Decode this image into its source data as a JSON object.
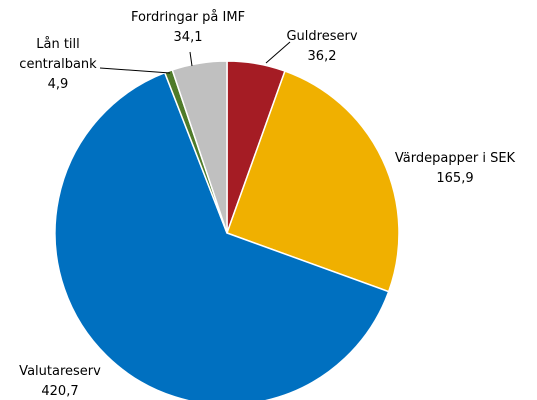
{
  "chart_data": {
    "type": "pie",
    "categories": [
      "Guldreserv",
      "Värdepapper i SEK",
      "Valutareserv",
      "Lån till centralbank",
      "Fordringar på IMF"
    ],
    "values": [
      36.2,
      165.9,
      420.7,
      4.9,
      34.1
    ],
    "value_labels": [
      "36,2",
      "165,9",
      "420,7",
      "4,9",
      "34,1"
    ],
    "colors": [
      "#a51c24",
      "#f0b000",
      "#0070c0",
      "#4f7b2a",
      "#c0c0c0"
    ]
  }
}
